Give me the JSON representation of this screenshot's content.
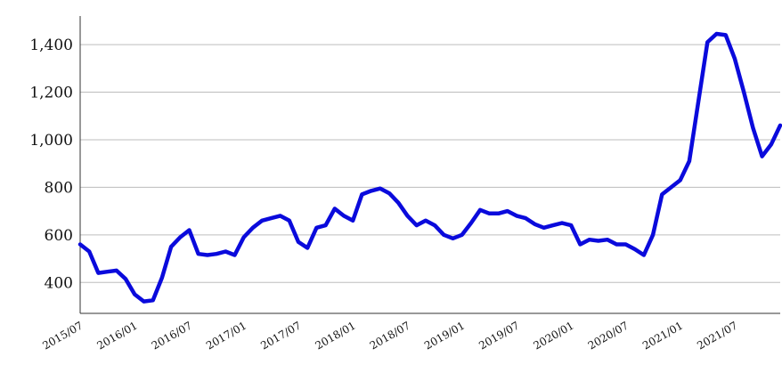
{
  "chart_data": {
    "type": "line",
    "title": "",
    "xlabel": "",
    "ylabel": "",
    "ylim": [
      270,
      1520
    ],
    "xlim": [
      "2015-07",
      "2021-12"
    ],
    "grid": "horizontal",
    "legend": "none",
    "colors": {
      "line": "#0a0adc",
      "grid": "#bdbdbd",
      "axis": "#333333"
    },
    "y_ticks": [
      400,
      600,
      800,
      1000,
      1200,
      1400
    ],
    "y_tick_labels": [
      "400",
      "600",
      "800",
      "1,000",
      "1,200",
      "1,400"
    ],
    "x_ticks": [
      "2015-07",
      "2016-01",
      "2016-07",
      "2017-01",
      "2017-07",
      "2018-01",
      "2018-07",
      "2019-01",
      "2019-07",
      "2020-01",
      "2020-07",
      "2021-01",
      "2021-07"
    ],
    "x_tick_labels": [
      "2015/07",
      "2016/01",
      "2016/07",
      "2017/01",
      "2017/07",
      "2018/01",
      "2018/07",
      "2019/01",
      "2019/07",
      "2020/01",
      "2020/07",
      "2021/01",
      "2021/07"
    ],
    "series": [
      {
        "x": [
          "2015-07",
          "2015-08",
          "2015-09",
          "2015-10",
          "2015-11",
          "2015-12",
          "2016-01",
          "2016-02",
          "2016-03",
          "2016-04",
          "2016-05",
          "2016-06",
          "2016-07",
          "2016-08",
          "2016-09",
          "2016-10",
          "2016-11",
          "2016-12",
          "2017-01",
          "2017-02",
          "2017-03",
          "2017-04",
          "2017-05",
          "2017-06",
          "2017-07",
          "2017-08",
          "2017-09",
          "2017-10",
          "2017-11",
          "2017-12",
          "2018-01",
          "2018-02",
          "2018-03",
          "2018-04",
          "2018-05",
          "2018-06",
          "2018-07",
          "2018-08",
          "2018-09",
          "2018-10",
          "2018-11",
          "2018-12",
          "2019-01",
          "2019-02",
          "2019-03",
          "2019-04",
          "2019-05",
          "2019-06",
          "2019-07",
          "2019-08",
          "2019-09",
          "2019-10",
          "2019-11",
          "2019-12",
          "2020-01",
          "2020-02",
          "2020-03",
          "2020-04",
          "2020-05",
          "2020-06",
          "2020-07",
          "2020-08",
          "2020-09",
          "2020-10",
          "2020-11",
          "2020-12",
          "2021-01",
          "2021-02",
          "2021-03",
          "2021-04",
          "2021-05",
          "2021-06",
          "2021-07",
          "2021-08",
          "2021-09",
          "2021-10",
          "2021-11",
          "2021-12"
        ],
        "values": [
          560,
          530,
          440,
          445,
          450,
          415,
          350,
          320,
          325,
          420,
          550,
          590,
          620,
          520,
          515,
          520,
          530,
          515,
          590,
          630,
          660,
          670,
          680,
          660,
          570,
          545,
          630,
          640,
          710,
          680,
          660,
          770,
          785,
          795,
          775,
          735,
          680,
          640,
          660,
          640,
          600,
          585,
          600,
          650,
          705,
          690,
          690,
          700,
          680,
          670,
          645,
          630,
          640,
          650,
          640,
          560,
          580,
          575,
          580,
          560,
          560,
          540,
          515,
          600,
          770,
          800,
          830,
          910,
          1160,
          1410,
          1445,
          1440,
          1340,
          1200,
          1050,
          930,
          980,
          1060
        ]
      }
    ]
  }
}
